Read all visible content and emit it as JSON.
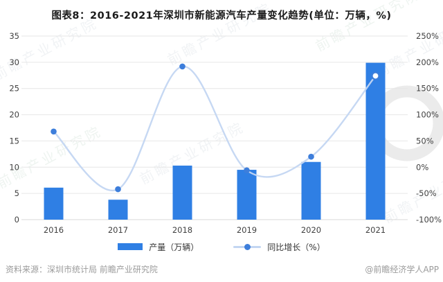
{
  "title": "图表8：2016-2021年深圳市新能源汽车产量变化趋势(单位：万辆，%)",
  "colors": {
    "bar": "#2F7FE4",
    "line": "#C3D6F2",
    "dot": "#3D7EDB",
    "grid": "#E6E6E6",
    "baseline": "#D8D8D8",
    "axis_text": "#404040",
    "title_text": "#1A1A1A",
    "footer_text": "#9B9B9B"
  },
  "chart_data": {
    "type": "bar+line combo",
    "categories": [
      "2016",
      "2017",
      "2018",
      "2019",
      "2020",
      "2021"
    ],
    "series": [
      {
        "name": "产量（万辆）",
        "type": "bar",
        "axis": "left",
        "values": [
          6.1,
          3.8,
          10.3,
          9.5,
          11.0,
          29.9
        ]
      },
      {
        "name": "同比增长（%）",
        "type": "line",
        "axis": "right",
        "values": [
          68,
          -42,
          192,
          -6,
          20,
          174
        ],
        "last_point_open": true
      }
    ],
    "left_axis": {
      "min": 0,
      "max": 35,
      "step": 5,
      "ticks": [
        "0",
        "5",
        "10",
        "15",
        "20",
        "25",
        "30",
        "35"
      ]
    },
    "right_axis": {
      "min": -100,
      "max": 250,
      "step": 50,
      "ticks": [
        "-100%",
        "-50%",
        "0%",
        "50%",
        "100%",
        "150%",
        "200%",
        "250%"
      ]
    },
    "grid": true,
    "legend_position": "bottom",
    "title": "图表8：2016-2021年深圳市新能源汽车产量变化趋势(单位：万辆，%)"
  },
  "legend": {
    "bar_label": "产量（万辆）",
    "line_label": "同比增长（%）"
  },
  "footer": {
    "source": "资料来源：深圳市统计局 前瞻产业研究院",
    "credit": "@前瞻经济学人APP"
  },
  "watermark": {
    "text": "前瞻产业研究院"
  }
}
